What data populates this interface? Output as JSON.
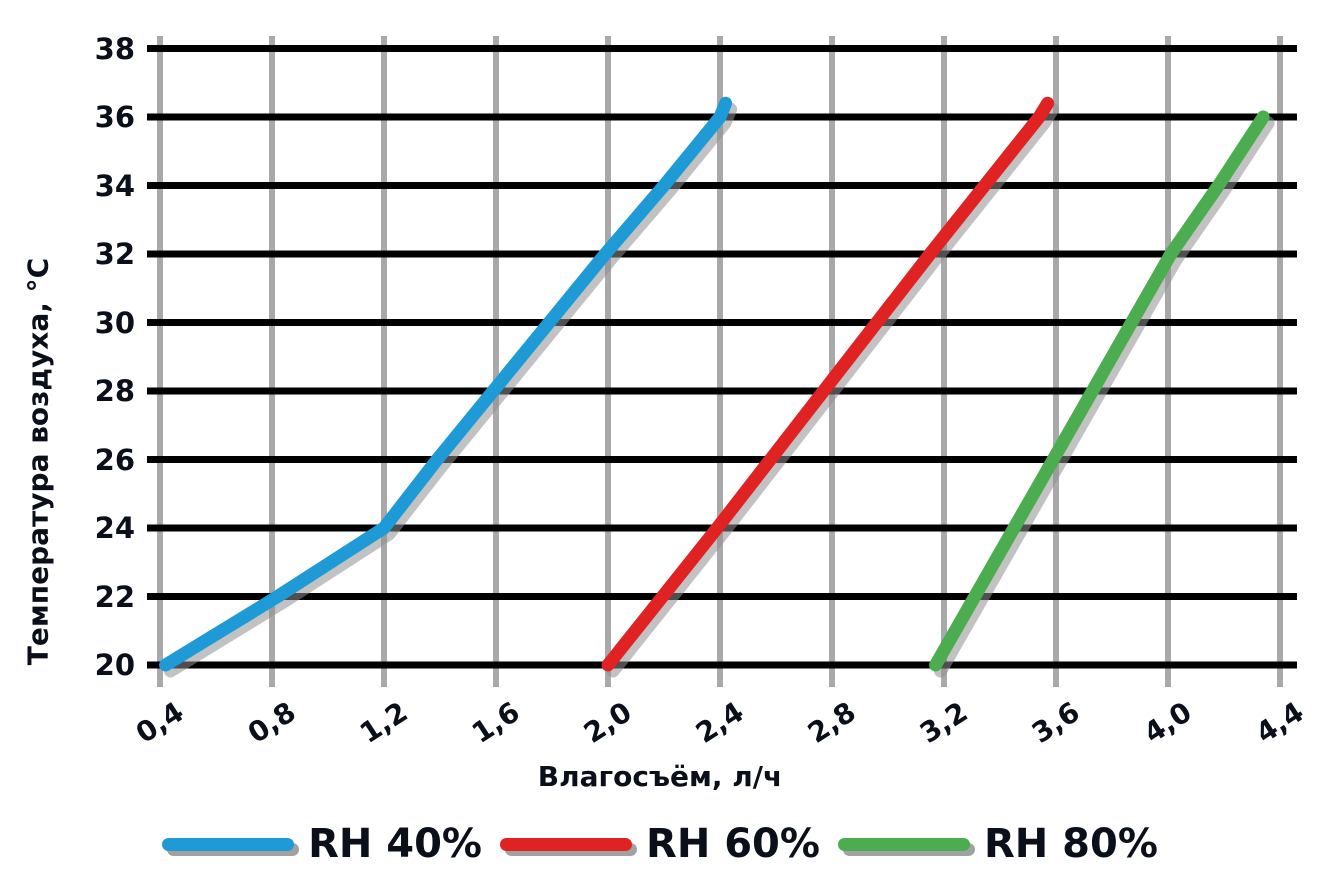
{
  "chart_data": {
    "type": "line",
    "title": "",
    "xlabel": "Влагосъём, л/ч",
    "ylabel": "Температура воздуха, °С",
    "x_ticks": {
      "values": [
        0.4,
        0.8,
        1.2,
        1.6,
        2.0,
        2.4,
        2.8,
        3.2,
        3.6,
        4.0,
        4.4
      ],
      "labels": [
        "0,4",
        "0,8",
        "1,2",
        "1,6",
        "2,0",
        "2,4",
        "2,8",
        "3,2",
        "3,6",
        "4,0",
        "4,4"
      ]
    },
    "y_ticks": {
      "values": [
        38,
        36,
        34,
        32,
        30,
        28,
        26,
        24,
        22,
        20
      ],
      "labels": [
        "38",
        "36",
        "34",
        "32",
        "30",
        "28",
        "26",
        "24",
        "22",
        "20"
      ]
    },
    "x_range": [
      0.4,
      4.4
    ],
    "y_range": [
      20,
      38
    ],
    "grid": {
      "vertical_color": "#a9a9a9",
      "horizontal_color": "#000000",
      "shadow_color": "#8f8f8f"
    },
    "series": [
      {
        "name": "RH 40%",
        "color": "#1e9bd7",
        "points": [
          [
            0.42,
            20
          ],
          [
            0.82,
            22
          ],
          [
            1.2,
            24
          ],
          [
            1.39,
            26
          ],
          [
            1.59,
            28
          ],
          [
            1.79,
            30
          ],
          [
            1.99,
            32
          ],
          [
            2.2,
            34
          ],
          [
            2.4,
            36
          ],
          [
            2.42,
            36.4
          ]
        ]
      },
      {
        "name": "RH 60%",
        "color": "#e02222",
        "points": [
          [
            2.0,
            20
          ],
          [
            2.39,
            24
          ],
          [
            2.77,
            28
          ],
          [
            3.15,
            32
          ],
          [
            3.54,
            36
          ],
          [
            3.57,
            36.4
          ]
        ]
      },
      {
        "name": "RH 80%",
        "color": "#4cad50",
        "points": [
          [
            3.17,
            20
          ],
          [
            3.45,
            24
          ],
          [
            3.73,
            28
          ],
          [
            4.01,
            32
          ],
          [
            4.18,
            34
          ],
          [
            4.34,
            36.0
          ]
        ]
      }
    ],
    "legend": {
      "position": "bottom",
      "entries": [
        {
          "label": "RH 40%",
          "color": "#1e9bd7"
        },
        {
          "label": "RH 60%",
          "color": "#e02222"
        },
        {
          "label": "RH 80%",
          "color": "#4cad50"
        }
      ]
    }
  }
}
